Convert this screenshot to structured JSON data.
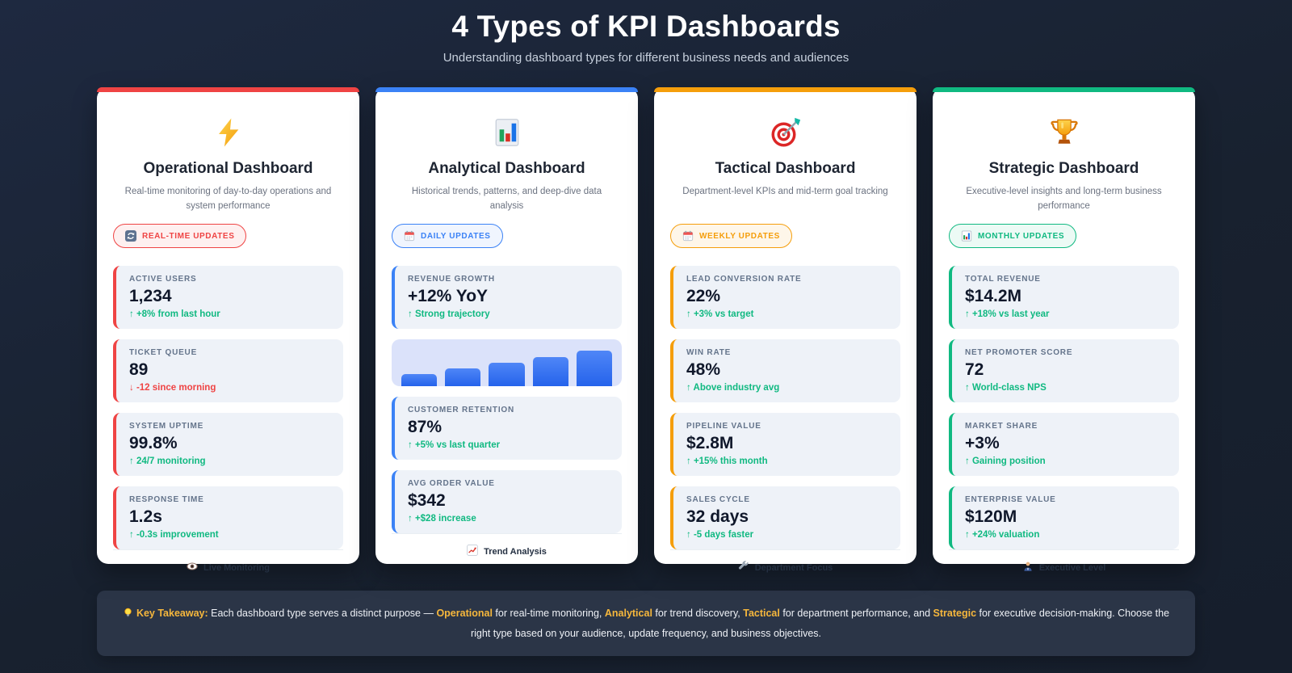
{
  "header": {
    "title": "4 Types of KPI Dashboards",
    "subtitle": "Understanding dashboard types for different business needs and audiences"
  },
  "cards": [
    {
      "accent": "#ef4444",
      "accent_soft": "rgba(239,68,68,0.08)",
      "icon": "lightning-icon",
      "title": "Operational Dashboard",
      "description": "Real-time monitoring of day-to-day operations and system performance",
      "badge": {
        "icon": "refresh-icon",
        "label": "REAL-TIME UPDATES"
      },
      "metrics": [
        {
          "label": "ACTIVE USERS",
          "value": "1,234",
          "change": "↑ +8% from last hour",
          "change_color": "#10b981"
        },
        {
          "label": "TICKET QUEUE",
          "value": "89",
          "change": "↓ -12 since morning",
          "change_color": "#ef4444"
        },
        {
          "label": "SYSTEM UPTIME",
          "value": "99.8%",
          "change": "↑ 24/7 monitoring",
          "change_color": "#10b981"
        },
        {
          "label": "RESPONSE TIME",
          "value": "1.2s",
          "change": "↑ -0.3s improvement",
          "change_color": "#10b981"
        }
      ],
      "footer": {
        "icon": "eye-icon",
        "label": "Live Monitoring"
      }
    },
    {
      "accent": "#3b82f6",
      "accent_soft": "rgba(59,130,246,0.08)",
      "icon": "bar-chart-icon",
      "title": "Analytical Dashboard",
      "description": "Historical trends, patterns, and deep-dive data analysis",
      "badge": {
        "icon": "calendar-icon",
        "label": "DAILY UPDATES"
      },
      "metrics": [
        {
          "label": "REVENUE GROWTH",
          "value": "+12% YoY",
          "change": "↑ Strong trajectory",
          "change_color": "#10b981"
        },
        {
          "label": "CUSTOMER RETENTION",
          "value": "87%",
          "change": "↑ +5% vs last quarter",
          "change_color": "#10b981"
        },
        {
          "label": "AVG ORDER VALUE",
          "value": "$342",
          "change": "↑ +$28 increase",
          "change_color": "#10b981"
        }
      ],
      "footer": {
        "icon": "trend-up-icon",
        "label": "Trend Analysis"
      }
    },
    {
      "accent": "#f59e0b",
      "accent_soft": "rgba(245,158,11,0.09)",
      "icon": "target-icon",
      "title": "Tactical Dashboard",
      "description": "Department-level KPIs and mid-term goal tracking",
      "badge": {
        "icon": "calendar-icon",
        "label": "WEEKLY UPDATES"
      },
      "metrics": [
        {
          "label": "LEAD CONVERSION RATE",
          "value": "22%",
          "change": "↑ +3% vs target",
          "change_color": "#10b981"
        },
        {
          "label": "WIN RATE",
          "value": "48%",
          "change": "↑ Above industry avg",
          "change_color": "#10b981"
        },
        {
          "label": "PIPELINE VALUE",
          "value": "$2.8M",
          "change": "↑ +15% this month",
          "change_color": "#10b981"
        },
        {
          "label": "SALES CYCLE",
          "value": "32 days",
          "change": "↑ -5 days faster",
          "change_color": "#10b981"
        }
      ],
      "footer": {
        "icon": "wrench-icon",
        "label": "Department Focus"
      }
    },
    {
      "accent": "#10b981",
      "accent_soft": "rgba(16,185,129,0.08)",
      "icon": "trophy-icon",
      "title": "Strategic Dashboard",
      "description": "Executive-level insights and long-term business performance",
      "badge": {
        "icon": "mini-chart-icon",
        "label": "MONTHLY UPDATES"
      },
      "metrics": [
        {
          "label": "TOTAL REVENUE",
          "value": "$14.2M",
          "change": "↑ +18% vs last year",
          "change_color": "#10b981"
        },
        {
          "label": "NET PROMOTER SCORE",
          "value": "72",
          "change": "↑ World-class NPS",
          "change_color": "#10b981"
        },
        {
          "label": "MARKET SHARE",
          "value": "+3%",
          "change": "↑ Gaining position",
          "change_color": "#10b981"
        },
        {
          "label": "ENTERPRISE VALUE",
          "value": "$120M",
          "change": "↑ +24% valuation",
          "change_color": "#10b981"
        }
      ],
      "footer": {
        "icon": "executive-person-icon",
        "label": "Executive Level"
      }
    }
  ],
  "chart_data": {
    "type": "bar",
    "categories": [
      "1",
      "2",
      "3",
      "4",
      "5"
    ],
    "values": [
      32,
      46,
      60,
      74,
      92
    ],
    "title": "",
    "xlabel": "",
    "ylabel": "",
    "ylim": [
      0,
      100
    ],
    "bar_color": "#2f6bf0",
    "panel_color": "#dbe2fa",
    "axes": "hidden",
    "legend": "none"
  },
  "takeaway": {
    "icon": "lightbulb-icon",
    "prefix": "Key Takeaway:",
    "segments": [
      {
        "text": " Each dashboard type serves a distinct purpose — ",
        "highlight": false
      },
      {
        "text": "Operational",
        "highlight": true
      },
      {
        "text": " for real-time monitoring, ",
        "highlight": false
      },
      {
        "text": "Analytical",
        "highlight": true
      },
      {
        "text": " for trend discovery, ",
        "highlight": false
      },
      {
        "text": "Tactical",
        "highlight": true
      },
      {
        "text": " for department performance, and ",
        "highlight": false
      },
      {
        "text": "Strategic",
        "highlight": true
      },
      {
        "text": " for executive decision-making. Choose the right type based on your audience, update frequency, and business objectives.",
        "highlight": false
      }
    ]
  }
}
